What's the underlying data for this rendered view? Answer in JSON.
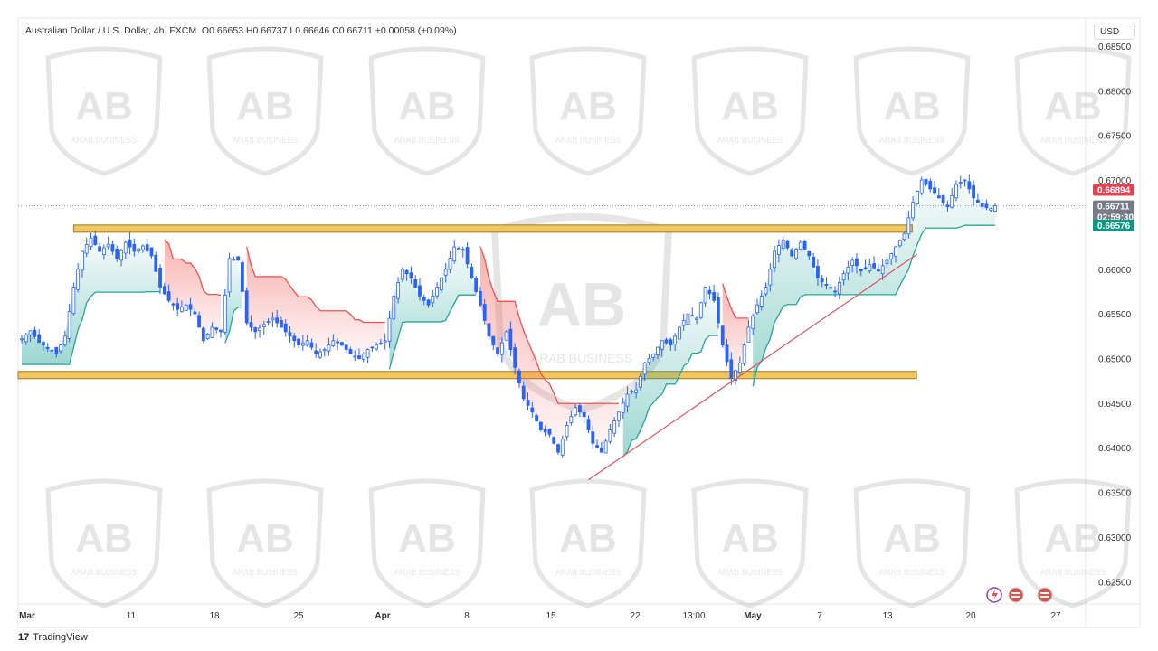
{
  "header": {
    "title": "Australian Dollar / U.S. Dollar, 4h, FXCM",
    "ohlc": "O0.66653  H0.66737  L0.66646  C0.66711  +0.00058 (+0.09%)",
    "currency": "USD"
  },
  "footer": {
    "brand": "TradingView"
  },
  "watermark": {
    "text": "ARAB BUSINESS"
  },
  "price_tags": {
    "supertrend_red": "0.66894",
    "last": "0.66711",
    "countdown": "02:59:30",
    "supertrend_green": "0.66576"
  },
  "colors": {
    "bull": "#26a69a",
    "bear": "#ef5350",
    "candle": "#2962ff",
    "zone": "#f2c75c",
    "trendline": "#e0525e",
    "tag_red": "#e54150",
    "tag_gray": "#787b86",
    "tag_green": "#089981"
  },
  "chart_data": {
    "type": "candlestick",
    "y_axis": {
      "range": [
        0.6225,
        0.6855
      ],
      "ticks": [
        "0.68500",
        "0.68000",
        "0.67500",
        "0.67000",
        "0.66500",
        "0.66000",
        "0.65500",
        "0.65000",
        "0.64500",
        "0.64000",
        "0.63500",
        "0.63000",
        "0.62500"
      ]
    },
    "x_axis": {
      "ticks": [
        "Mar",
        "11",
        "18",
        "25",
        "Apr",
        "8",
        "15",
        "22",
        "13:00",
        "May",
        "7",
        "13",
        "20",
        "27"
      ],
      "bold": [
        "Mar",
        "Apr",
        "May"
      ]
    },
    "close_path": [
      [
        0,
        0.6522
      ],
      [
        2,
        0.6531
      ],
      [
        4,
        0.6518
      ],
      [
        6,
        0.6512
      ],
      [
        8,
        0.6505
      ],
      [
        10,
        0.6525
      ],
      [
        12,
        0.658
      ],
      [
        14,
        0.662
      ],
      [
        16,
        0.6635
      ],
      [
        18,
        0.662
      ],
      [
        20,
        0.6628
      ],
      [
        22,
        0.6612
      ],
      [
        24,
        0.663
      ],
      [
        26,
        0.662
      ],
      [
        28,
        0.6626
      ],
      [
        30,
        0.6615
      ],
      [
        32,
        0.658
      ],
      [
        34,
        0.6565
      ],
      [
        36,
        0.6555
      ],
      [
        38,
        0.656
      ],
      [
        40,
        0.655
      ],
      [
        42,
        0.652
      ],
      [
        44,
        0.6535
      ],
      [
        46,
        0.653
      ],
      [
        48,
        0.6612
      ],
      [
        50,
        0.661
      ],
      [
        52,
        0.654
      ],
      [
        54,
        0.653
      ],
      [
        56,
        0.6538
      ],
      [
        58,
        0.6545
      ],
      [
        60,
        0.6535
      ],
      [
        62,
        0.6525
      ],
      [
        64,
        0.6515
      ],
      [
        66,
        0.652
      ],
      [
        68,
        0.6505
      ],
      [
        70,
        0.651
      ],
      [
        72,
        0.652
      ],
      [
        74,
        0.6515
      ],
      [
        76,
        0.6505
      ],
      [
        78,
        0.65
      ],
      [
        80,
        0.651
      ],
      [
        82,
        0.6515
      ],
      [
        84,
        0.652
      ],
      [
        86,
        0.657
      ],
      [
        88,
        0.66
      ],
      [
        90,
        0.659
      ],
      [
        92,
        0.657
      ],
      [
        94,
        0.656
      ],
      [
        96,
        0.658
      ],
      [
        98,
        0.66
      ],
      [
        100,
        0.6625
      ],
      [
        102,
        0.6622
      ],
      [
        104,
        0.659
      ],
      [
        106,
        0.656
      ],
      [
        108,
        0.6525
      ],
      [
        110,
        0.6505
      ],
      [
        112,
        0.653
      ],
      [
        114,
        0.649
      ],
      [
        116,
        0.6455
      ],
      [
        118,
        0.644
      ],
      [
        120,
        0.642
      ],
      [
        122,
        0.6415
      ],
      [
        124,
        0.6395
      ],
      [
        126,
        0.6425
      ],
      [
        128,
        0.6445
      ],
      [
        130,
        0.6435
      ],
      [
        132,
        0.6405
      ],
      [
        134,
        0.6395
      ],
      [
        136,
        0.642
      ],
      [
        138,
        0.644
      ],
      [
        140,
        0.646
      ],
      [
        142,
        0.6465
      ],
      [
        144,
        0.6495
      ],
      [
        146,
        0.6505
      ],
      [
        148,
        0.652
      ],
      [
        150,
        0.6515
      ],
      [
        152,
        0.6535
      ],
      [
        154,
        0.655
      ],
      [
        156,
        0.6545
      ],
      [
        158,
        0.658
      ],
      [
        160,
        0.6565
      ],
      [
        162,
        0.6515
      ],
      [
        164,
        0.6478
      ],
      [
        166,
        0.6495
      ],
      [
        168,
        0.6535
      ],
      [
        170,
        0.656
      ],
      [
        172,
        0.658
      ],
      [
        174,
        0.662
      ],
      [
        176,
        0.6633
      ],
      [
        178,
        0.6615
      ],
      [
        180,
        0.663
      ],
      [
        182,
        0.6615
      ],
      [
        184,
        0.659
      ],
      [
        186,
        0.6582
      ],
      [
        188,
        0.6575
      ],
      [
        190,
        0.6595
      ],
      [
        192,
        0.661
      ],
      [
        194,
        0.6598
      ],
      [
        196,
        0.6605
      ],
      [
        198,
        0.6598
      ],
      [
        200,
        0.661
      ],
      [
        202,
        0.6625
      ],
      [
        204,
        0.664
      ],
      [
        206,
        0.6675
      ],
      [
        208,
        0.67
      ],
      [
        210,
        0.669
      ],
      [
        212,
        0.668
      ],
      [
        214,
        0.667
      ],
      [
        216,
        0.6695
      ],
      [
        218,
        0.67
      ],
      [
        220,
        0.668
      ],
      [
        222,
        0.667
      ],
      [
        224,
        0.6668
      ],
      [
        225,
        0.66711
      ]
    ],
    "zones": [
      {
        "name": "resistance",
        "x_span": [
          12,
          205
        ],
        "price": 0.66455
      },
      {
        "name": "support",
        "x_span": [
          0,
          206
        ],
        "price": 0.64815
      }
    ],
    "trendline": {
      "from": [
        131,
        0.6364
      ],
      "to": [
        207,
        0.6617
      ]
    }
  }
}
